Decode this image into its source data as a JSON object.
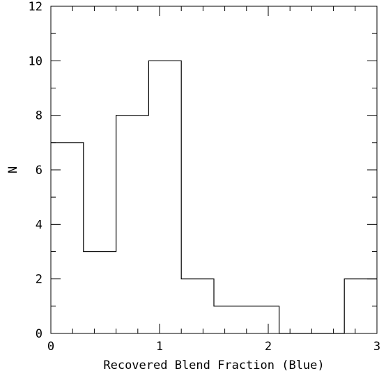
{
  "chart_data": {
    "type": "bar",
    "subtype": "histogram-step",
    "bin_edges": [
      0,
      0.3,
      0.6,
      0.9,
      1.2,
      1.5,
      1.8,
      2.1,
      2.4,
      2.7,
      3.0
    ],
    "values": [
      7,
      3,
      8,
      10,
      2,
      1,
      1,
      0,
      0,
      2
    ],
    "xlabel": "Recovered Blend Fraction (Blue)",
    "ylabel": "N",
    "xlim": [
      0,
      3
    ],
    "ylim": [
      0,
      12
    ],
    "xticks": [
      "0",
      "1",
      "2",
      "3"
    ],
    "yticks": [
      "0",
      "2",
      "4",
      "6",
      "8",
      "10",
      "12"
    ],
    "grid": false,
    "line_color": "#000000"
  }
}
